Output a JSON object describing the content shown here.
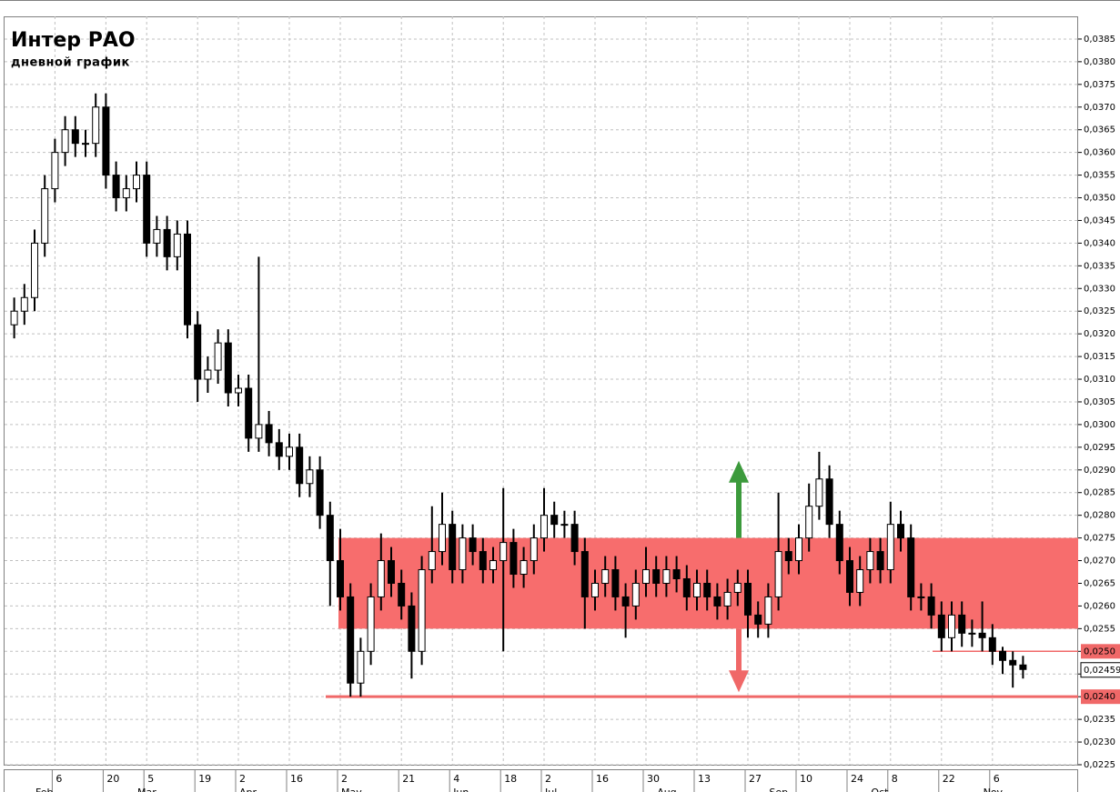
{
  "chart_data": {
    "type": "candlestick",
    "title": "Интер РАО",
    "subtitle": "дневной график",
    "ylim": [
      0.0225,
      0.039
    ],
    "yticks": [
      {
        "value": 0.0225,
        "label": "0,0225"
      },
      {
        "value": 0.023,
        "label": "0,0230"
      },
      {
        "value": 0.0235,
        "label": "0,0235"
      },
      {
        "value": 0.024,
        "label": "0,0240"
      },
      {
        "value": 0.0245,
        "label": "0,0245"
      },
      {
        "value": 0.025,
        "label": "0,0250"
      },
      {
        "value": 0.0255,
        "label": "0,0255"
      },
      {
        "value": 0.026,
        "label": "0,0260"
      },
      {
        "value": 0.0265,
        "label": "0,0265"
      },
      {
        "value": 0.027,
        "label": "0,0270"
      },
      {
        "value": 0.0275,
        "label": "0,0275"
      },
      {
        "value": 0.028,
        "label": "0,0280"
      },
      {
        "value": 0.0285,
        "label": "0,0285"
      },
      {
        "value": 0.029,
        "label": "0,0290"
      },
      {
        "value": 0.0295,
        "label": "0,0295"
      },
      {
        "value": 0.03,
        "label": "0,0300"
      },
      {
        "value": 0.0305,
        "label": "0,0305"
      },
      {
        "value": 0.031,
        "label": "0,0310"
      },
      {
        "value": 0.0315,
        "label": "0,0315"
      },
      {
        "value": 0.032,
        "label": "0,0320"
      },
      {
        "value": 0.0325,
        "label": "0,0325"
      },
      {
        "value": 0.033,
        "label": "0,0330"
      },
      {
        "value": 0.0335,
        "label": "0,0335"
      },
      {
        "value": 0.034,
        "label": "0,0340"
      },
      {
        "value": 0.0345,
        "label": "0,0345"
      },
      {
        "value": 0.035,
        "label": "0,0350"
      },
      {
        "value": 0.0355,
        "label": "0,0355"
      },
      {
        "value": 0.036,
        "label": "0,0360"
      },
      {
        "value": 0.0365,
        "label": "0,0365"
      },
      {
        "value": 0.037,
        "label": "0,0370"
      },
      {
        "value": 0.0375,
        "label": "0,0375"
      },
      {
        "value": 0.038,
        "label": "0,0380"
      },
      {
        "value": 0.0385,
        "label": "0,0385"
      }
    ],
    "grid": true,
    "categories": [
      null,
      null,
      null,
      null,
      "6",
      null,
      null,
      null,
      null,
      "20",
      null,
      null,
      null,
      "5",
      null,
      null,
      null,
      null,
      "19",
      null,
      null,
      null,
      "2",
      null,
      null,
      null,
      null,
      "16",
      null,
      null,
      null,
      null,
      "2",
      null,
      null,
      null,
      null,
      null,
      "21",
      null,
      null,
      null,
      null,
      "4",
      null,
      null,
      null,
      null,
      "18",
      null,
      null,
      null,
      "2",
      null,
      null,
      null,
      null,
      "16",
      null,
      null,
      null,
      null,
      "30",
      null,
      null,
      null,
      null,
      "13",
      null,
      null,
      null,
      null,
      "27",
      null,
      null,
      null,
      null,
      "10",
      null,
      null,
      null,
      null,
      "24",
      null,
      null,
      null,
      "8",
      null,
      null,
      null,
      null,
      "22",
      null,
      null,
      null,
      null,
      "6",
      null,
      null,
      null
    ],
    "month_categories": [
      null,
      null,
      "Feb",
      null,
      null,
      null,
      null,
      null,
      null,
      null,
      null,
      null,
      "Mar",
      null,
      null,
      null,
      null,
      null,
      null,
      null,
      null,
      null,
      "Apr",
      null,
      null,
      null,
      null,
      null,
      null,
      null,
      null,
      null,
      "May",
      null,
      null,
      null,
      null,
      null,
      null,
      null,
      null,
      null,
      null,
      "Jun",
      null,
      null,
      null,
      null,
      null,
      null,
      null,
      null,
      "Jul",
      null,
      null,
      null,
      null,
      null,
      null,
      null,
      null,
      null,
      null,
      "Aug",
      null,
      null,
      null,
      null,
      null,
      null,
      null,
      null,
      null,
      null,
      "Sep",
      null,
      null,
      null,
      null,
      null,
      null,
      null,
      null,
      null,
      "Oct",
      null,
      null,
      null,
      null,
      null,
      null,
      null,
      null,
      null,
      null,
      "Nov",
      null,
      null,
      null,
      null
    ],
    "open": [
      0.0322,
      0.0325,
      0.0328,
      0.034,
      0.0352,
      0.036,
      0.0365,
      0.0362,
      0.0362,
      0.037,
      0.0355,
      0.035,
      0.0352,
      0.0355,
      0.034,
      0.0343,
      0.0337,
      0.0342,
      0.0322,
      0.031,
      0.0312,
      0.0318,
      0.0307,
      0.0308,
      0.0297,
      0.03,
      0.0296,
      0.0293,
      0.0295,
      0.0287,
      0.029,
      0.028,
      0.027,
      0.0262,
      0.0243,
      0.025,
      0.0262,
      0.027,
      0.0265,
      0.026,
      0.025,
      0.0268,
      0.0272,
      0.0278,
      0.0268,
      0.0275,
      0.0272,
      0.0268,
      0.027,
      0.0274,
      0.0267,
      0.027,
      0.0275,
      0.028,
      0.0278,
      0.0278,
      0.0272,
      0.0262,
      0.0265,
      0.0268,
      0.0262,
      0.026,
      0.0265,
      0.0268,
      0.0265,
      0.0268,
      0.0266,
      0.0262,
      0.0265,
      0.0262,
      0.026,
      0.0263,
      0.0265,
      0.0258,
      0.0256,
      0.0262,
      0.0272,
      0.027,
      0.0275,
      0.0282,
      0.0288,
      0.0278,
      0.027,
      0.0263,
      0.0268,
      0.0272,
      0.0268,
      0.0278,
      0.0275,
      0.0262,
      0.0262,
      0.0258,
      0.0253,
      0.0258,
      0.0254,
      0.0254,
      0.0253,
      0.025,
      0.0248,
      0.0247
    ],
    "high": [
      0.0328,
      0.0331,
      0.0343,
      0.0355,
      0.0363,
      0.0368,
      0.0368,
      0.0365,
      0.0373,
      0.0373,
      0.0358,
      0.0355,
      0.0358,
      0.0358,
      0.0346,
      0.0346,
      0.0345,
      0.0345,
      0.0325,
      0.0315,
      0.0321,
      0.0321,
      0.0311,
      0.0311,
      0.0337,
      0.0303,
      0.0299,
      0.0298,
      0.0298,
      0.0293,
      0.0293,
      0.0283,
      0.0277,
      0.0265,
      0.0253,
      0.0265,
      0.0276,
      0.0273,
      0.0268,
      0.0263,
      0.0271,
      0.0282,
      0.0285,
      0.0281,
      0.0278,
      0.0278,
      0.0275,
      0.0273,
      0.0286,
      0.0277,
      0.0273,
      0.0278,
      0.0286,
      0.0283,
      0.0281,
      0.0281,
      0.0275,
      0.0268,
      0.0271,
      0.0271,
      0.0265,
      0.0268,
      0.0273,
      0.0271,
      0.0271,
      0.0271,
      0.0269,
      0.0268,
      0.0268,
      0.0265,
      0.0266,
      0.0268,
      0.0268,
      0.0261,
      0.0265,
      0.0285,
      0.0275,
      0.0278,
      0.0287,
      0.0294,
      0.0291,
      0.0281,
      0.0273,
      0.0271,
      0.0275,
      0.0275,
      0.0283,
      0.0281,
      0.0278,
      0.0265,
      0.0265,
      0.0261,
      0.0261,
      0.0261,
      0.0257,
      0.0261,
      0.0256,
      0.0251,
      0.025,
      0.0249
    ],
    "low": [
      0.0319,
      0.0322,
      0.0325,
      0.0337,
      0.0349,
      0.0357,
      0.0359,
      0.0359,
      0.0359,
      0.0352,
      0.0347,
      0.0347,
      0.0349,
      0.0337,
      0.0337,
      0.0334,
      0.0334,
      0.0319,
      0.0305,
      0.0307,
      0.0309,
      0.0304,
      0.0304,
      0.0294,
      0.0294,
      0.0293,
      0.029,
      0.029,
      0.0284,
      0.0284,
      0.0277,
      0.026,
      0.0259,
      0.024,
      0.024,
      0.0247,
      0.0259,
      0.0262,
      0.0257,
      0.0244,
      0.0247,
      0.0265,
      0.0269,
      0.0265,
      0.0265,
      0.0269,
      0.0265,
      0.0265,
      0.025,
      0.0264,
      0.0264,
      0.0267,
      0.0272,
      0.0275,
      0.0275,
      0.0269,
      0.0255,
      0.0259,
      0.0262,
      0.0259,
      0.0253,
      0.0257,
      0.0262,
      0.0262,
      0.0262,
      0.0263,
      0.0259,
      0.0259,
      0.0259,
      0.0257,
      0.0257,
      0.026,
      0.0253,
      0.0253,
      0.0253,
      0.0259,
      0.0267,
      0.0267,
      0.0272,
      0.0279,
      0.0275,
      0.0267,
      0.026,
      0.026,
      0.0265,
      0.0265,
      0.0265,
      0.0272,
      0.0259,
      0.0259,
      0.0255,
      0.025,
      0.025,
      0.0251,
      0.0251,
      0.025,
      0.0247,
      0.0245,
      0.0242,
      0.0244
    ],
    "close": [
      0.0325,
      0.0328,
      0.034,
      0.0352,
      0.036,
      0.0365,
      0.0362,
      0.0362,
      0.037,
      0.0355,
      0.035,
      0.0352,
      0.0355,
      0.034,
      0.0343,
      0.0337,
      0.0342,
      0.0322,
      0.031,
      0.0312,
      0.0318,
      0.0307,
      0.0308,
      0.0297,
      0.03,
      0.0296,
      0.0293,
      0.0295,
      0.0287,
      0.029,
      0.028,
      0.027,
      0.0262,
      0.0243,
      0.025,
      0.0262,
      0.027,
      0.0265,
      0.026,
      0.025,
      0.0268,
      0.0272,
      0.0278,
      0.0268,
      0.0275,
      0.0272,
      0.0268,
      0.027,
      0.0274,
      0.0267,
      0.027,
      0.0275,
      0.028,
      0.0278,
      0.0278,
      0.0272,
      0.0262,
      0.0265,
      0.0268,
      0.0262,
      0.026,
      0.0265,
      0.0268,
      0.0265,
      0.0268,
      0.0266,
      0.0262,
      0.0265,
      0.0262,
      0.026,
      0.0263,
      0.0265,
      0.0258,
      0.0256,
      0.0262,
      0.0272,
      0.027,
      0.0275,
      0.0282,
      0.0288,
      0.0278,
      0.027,
      0.0263,
      0.0268,
      0.0272,
      0.0268,
      0.0278,
      0.0275,
      0.0262,
      0.0262,
      0.0258,
      0.0253,
      0.0258,
      0.0254,
      0.0254,
      0.0253,
      0.025,
      0.0248,
      0.0247,
      0.0246
    ],
    "up_color": "#ffffff",
    "down_color": "#000000",
    "zones": [
      {
        "from": 0.0255,
        "to": 0.0275,
        "color": "#f76d6d"
      }
    ],
    "levels": [
      {
        "value": 0.024,
        "color": "#f06868"
      },
      {
        "value": 0.025,
        "color": "#f06868"
      }
    ],
    "arrows": [
      {
        "from": 0.0275,
        "to": 0.0292,
        "color": "#3c9a3c"
      },
      {
        "from": 0.0255,
        "to": 0.0241,
        "color": "#f06868"
      }
    ],
    "last_price": {
      "value": 0.02459,
      "label": "0,02459"
    }
  }
}
